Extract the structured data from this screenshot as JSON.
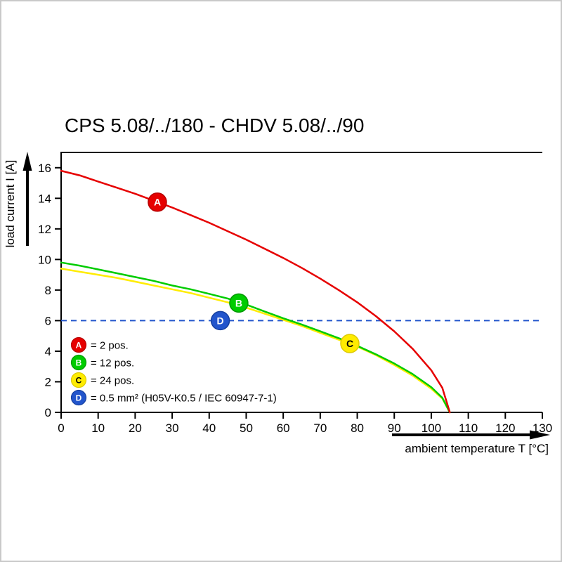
{
  "chart_data": {
    "type": "line",
    "title": "CPS 5.08/../180 - CHDV 5.08/../90",
    "xlabel": "ambient temperature T [°C]",
    "ylabel": "load current I [A]",
    "xlim": [
      0,
      130
    ],
    "ylim": [
      0,
      16
    ],
    "x_ticks": [
      0,
      10,
      20,
      30,
      40,
      50,
      60,
      70,
      80,
      90,
      100,
      110,
      120,
      130
    ],
    "y_ticks": [
      0,
      2,
      4,
      6,
      8,
      10,
      12,
      14,
      16
    ],
    "grid": false,
    "legend_position": "inside-lower-left",
    "series": [
      {
        "id": "A",
        "label": "= 2 pos.",
        "color": "#e60000",
        "edge_color": "#b80000",
        "letter_color": "#ffffff",
        "marker_at": {
          "x": 26,
          "y": 13.75
        },
        "points": [
          [
            0,
            15.8
          ],
          [
            5,
            15.5
          ],
          [
            10,
            15.1
          ],
          [
            15,
            14.7
          ],
          [
            20,
            14.3
          ],
          [
            25,
            13.85
          ],
          [
            30,
            13.4
          ],
          [
            35,
            12.9
          ],
          [
            40,
            12.4
          ],
          [
            45,
            11.85
          ],
          [
            50,
            11.3
          ],
          [
            55,
            10.7
          ],
          [
            60,
            10.1
          ],
          [
            65,
            9.45
          ],
          [
            70,
            8.75
          ],
          [
            75,
            8.0
          ],
          [
            80,
            7.2
          ],
          [
            85,
            6.3
          ],
          [
            90,
            5.3
          ],
          [
            95,
            4.15
          ],
          [
            100,
            2.75
          ],
          [
            103,
            1.6
          ],
          [
            105,
            0
          ]
        ]
      },
      {
        "id": "B",
        "label": "= 12 pos.",
        "color": "#00cc00",
        "edge_color": "#009900",
        "letter_color": "#ffffff",
        "marker_at": {
          "x": 48,
          "y": 7.15
        },
        "points": [
          [
            0,
            9.8
          ],
          [
            5,
            9.6
          ],
          [
            10,
            9.35
          ],
          [
            15,
            9.1
          ],
          [
            20,
            8.85
          ],
          [
            25,
            8.6
          ],
          [
            30,
            8.3
          ],
          [
            35,
            8.05
          ],
          [
            40,
            7.75
          ],
          [
            45,
            7.45
          ],
          [
            50,
            7.05
          ],
          [
            55,
            6.6
          ],
          [
            60,
            6.15
          ],
          [
            65,
            5.75
          ],
          [
            70,
            5.3
          ],
          [
            75,
            4.85
          ],
          [
            80,
            4.35
          ],
          [
            85,
            3.8
          ],
          [
            90,
            3.2
          ],
          [
            95,
            2.5
          ],
          [
            100,
            1.65
          ],
          [
            103,
            0.95
          ],
          [
            105,
            0
          ]
        ]
      },
      {
        "id": "C",
        "label": "= 24 pos.",
        "color": "#ffec00",
        "edge_color": "#ddc900",
        "letter_color": "#000000",
        "marker_at": {
          "x": 78,
          "y": 4.5
        },
        "points": [
          [
            0,
            9.4
          ],
          [
            5,
            9.2
          ],
          [
            10,
            9.0
          ],
          [
            15,
            8.8
          ],
          [
            20,
            8.55
          ],
          [
            25,
            8.3
          ],
          [
            30,
            8.05
          ],
          [
            35,
            7.8
          ],
          [
            40,
            7.5
          ],
          [
            45,
            7.2
          ],
          [
            50,
            6.85
          ],
          [
            55,
            6.45
          ],
          [
            60,
            6.05
          ],
          [
            65,
            5.65
          ],
          [
            70,
            5.2
          ],
          [
            75,
            4.75
          ],
          [
            80,
            4.3
          ],
          [
            85,
            3.75
          ],
          [
            90,
            3.1
          ],
          [
            95,
            2.4
          ],
          [
            100,
            1.55
          ],
          [
            103,
            0.9
          ],
          [
            105,
            0
          ]
        ]
      },
      {
        "id": "D",
        "label": "= 0.5 mm² (H05V-K0.5 / IEC 60947-7-1)",
        "color": "#2255cc",
        "edge_color": "#1540a0",
        "letter_color": "#ffffff",
        "style": "dashed-horizontal",
        "value": 6,
        "marker_at": {
          "x": 43,
          "y": 6
        }
      }
    ]
  }
}
